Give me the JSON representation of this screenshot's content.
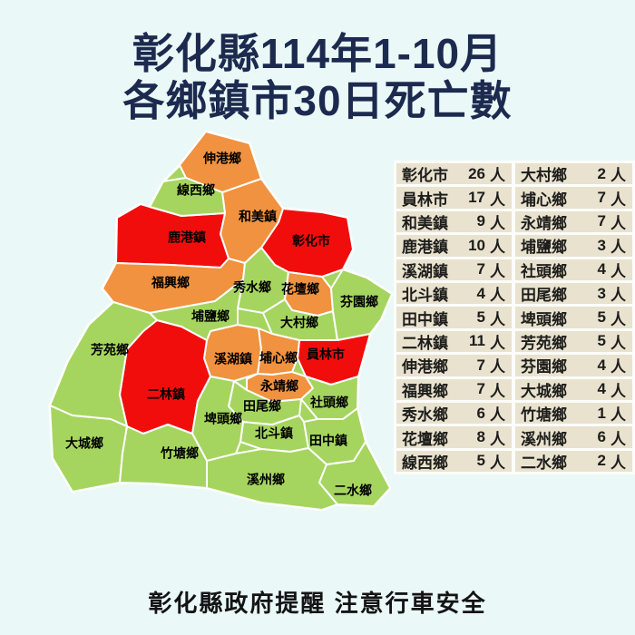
{
  "title": {
    "line1": "彰化縣114年1-10月",
    "line2": "各鄉鎮市30日死亡數"
  },
  "footer": {
    "text": "彰化縣政府提醒 注意行車安全"
  },
  "unit": "人",
  "theme": {
    "background": "#eaf9f7",
    "title_color": "#1d2a4f",
    "table_cell_bg": "#e9e2cf",
    "table_text_color": "#1d1d1b",
    "map_border_color": "#ffffff",
    "footer_color": "#141414"
  },
  "level_colors": {
    "red": "#f20d0d",
    "orange": "#f0923f",
    "green": "#a5d55f"
  },
  "townships": [
    {
      "id": "changhua",
      "name": "彰化市",
      "count": 26,
      "level": "red"
    },
    {
      "id": "yuanlin",
      "name": "員林市",
      "count": 17,
      "level": "red"
    },
    {
      "id": "hemei",
      "name": "和美鎮",
      "count": 9,
      "level": "orange"
    },
    {
      "id": "lukang",
      "name": "鹿港鎮",
      "count": 10,
      "level": "red"
    },
    {
      "id": "xihu",
      "name": "溪湖鎮",
      "count": 7,
      "level": "orange"
    },
    {
      "id": "beidou",
      "name": "北斗鎮",
      "count": 4,
      "level": "green"
    },
    {
      "id": "tianzhong",
      "name": "田中鎮",
      "count": 5,
      "level": "green"
    },
    {
      "id": "erlin",
      "name": "二林鎮",
      "count": 11,
      "level": "red"
    },
    {
      "id": "shengang",
      "name": "伸港鄉",
      "count": 7,
      "level": "orange"
    },
    {
      "id": "fuxing",
      "name": "福興鄉",
      "count": 7,
      "level": "orange"
    },
    {
      "id": "xiushui",
      "name": "秀水鄉",
      "count": 6,
      "level": "green"
    },
    {
      "id": "huatan",
      "name": "花壇鄉",
      "count": 8,
      "level": "orange"
    },
    {
      "id": "xianxi",
      "name": "線西鄉",
      "count": 5,
      "level": "green"
    },
    {
      "id": "dacun",
      "name": "大村鄉",
      "count": 2,
      "level": "green"
    },
    {
      "id": "puxin",
      "name": "埔心鄉",
      "count": 7,
      "level": "orange"
    },
    {
      "id": "yongjing",
      "name": "永靖鄉",
      "count": 7,
      "level": "orange"
    },
    {
      "id": "puyan",
      "name": "埔鹽鄉",
      "count": 3,
      "level": "green"
    },
    {
      "id": "shetou",
      "name": "社頭鄉",
      "count": 4,
      "level": "green"
    },
    {
      "id": "tianwei",
      "name": "田尾鄉",
      "count": 3,
      "level": "green"
    },
    {
      "id": "pitou",
      "name": "埤頭鄉",
      "count": 5,
      "level": "green"
    },
    {
      "id": "fangyuan",
      "name": "芳苑鄉",
      "count": 5,
      "level": "green"
    },
    {
      "id": "fenyuan",
      "name": "芬園鄉",
      "count": 4,
      "level": "green"
    },
    {
      "id": "dacheng",
      "name": "大城鄉",
      "count": 4,
      "level": "green"
    },
    {
      "id": "zhutang",
      "name": "竹塘鄉",
      "count": 1,
      "level": "green"
    },
    {
      "id": "xizhou",
      "name": "溪州鄉",
      "count": 6,
      "level": "green"
    },
    {
      "id": "ershui",
      "name": "二水鄉",
      "count": 2,
      "level": "green"
    }
  ]
}
